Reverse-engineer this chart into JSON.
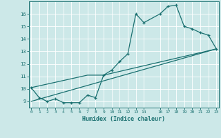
{
  "xlabel": "Humidex (Indice chaleur)",
  "bg_color": "#cce8e8",
  "grid_color": "#ffffff",
  "line_color": "#1a7070",
  "xlim": [
    -0.3,
    23.3
  ],
  "ylim": [
    8.5,
    17.0
  ],
  "yticks": [
    9,
    10,
    11,
    12,
    13,
    14,
    15,
    16
  ],
  "xticks": [
    0,
    1,
    2,
    3,
    4,
    5,
    6,
    7,
    8,
    9,
    10,
    11,
    12,
    13,
    14,
    16,
    17,
    18,
    19,
    20,
    21,
    22,
    23
  ],
  "curve1_x": [
    0,
    1,
    2,
    3,
    4,
    5,
    6,
    7,
    8,
    9,
    10,
    11,
    12,
    13,
    14,
    16,
    17,
    18,
    19,
    20,
    21,
    22,
    23
  ],
  "curve1_y": [
    10.1,
    9.3,
    9.0,
    9.2,
    8.9,
    8.9,
    8.9,
    9.5,
    9.3,
    11.1,
    11.5,
    12.2,
    12.8,
    16.0,
    15.3,
    16.0,
    16.6,
    16.7,
    15.0,
    14.8,
    14.5,
    14.3,
    13.2
  ],
  "curve2_x": [
    0,
    7,
    9,
    23
  ],
  "curve2_y": [
    10.1,
    11.1,
    11.1,
    13.2
  ],
  "curve3_x": [
    0,
    23
  ],
  "curve3_y": [
    9.0,
    13.2
  ]
}
